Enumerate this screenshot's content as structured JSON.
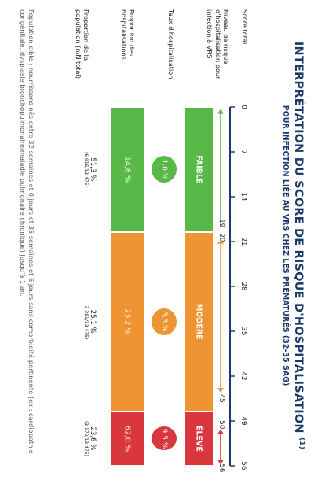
{
  "title": "INTERPRÉTATION DU SCORE DE RISQUE D'HOSPITALISATION",
  "title_note": "(1)",
  "subtitle": "POUR INFECTION LIÉE AU VRS CHEZ LES PRÉMATURÉS (32-35 SAG)",
  "rows": {
    "score_total": "Score total",
    "niveau": "Niveau de risque d'hospitalisation pour infection à VRS",
    "taux": "Taux d'hospitalisation",
    "prop_hosp": "Proportion des hospitalisations",
    "prop_pop": "Proportion de la population (n/N total)"
  },
  "scale": {
    "ticks": [
      "0",
      "7",
      "14",
      "21",
      "28",
      "35",
      "42",
      "49",
      "56"
    ],
    "min": 0,
    "max": 56
  },
  "boundaries": {
    "low_end": "19",
    "mod_start": "20",
    "mod_end": "45",
    "high_start": "50",
    "high_end": "56"
  },
  "levels": [
    {
      "key": "low",
      "label": "FAIBLE",
      "from": 0,
      "to": 19.5,
      "color": "#58b848",
      "taux": "1,0 %",
      "prop_hosp": "14,8 %",
      "prop_pop": "51,3 %",
      "prop_pop_n": "(6 915/13 475)"
    },
    {
      "key": "mod",
      "label": "MODÉRÉ",
      "from": 19.5,
      "to": 47.5,
      "color": "#ef9433",
      "taux": "3,3 %",
      "prop_hosp": "23,2 %",
      "prop_pop": "25,1 %",
      "prop_pop_n": "(3 381/13 475)"
    },
    {
      "key": "high",
      "label": "ÉLEVÉ",
      "from": 47.5,
      "to": 56,
      "color": "#d9373d",
      "taux": "9,5 %",
      "prop_hosp": "62,0 %",
      "prop_pop": "23,6 %",
      "prop_pop_n": "(3 179/13 475)"
    }
  ],
  "colors": {
    "navy": "#1b3a6b",
    "green": "#58b848",
    "orange": "#ef9433",
    "red": "#d9373d"
  },
  "footnote": "Population cible : nourrissons nés entre 32 semaines et 0 jours et 35 semaines et 6 jours sans comorbidité pertinente (ex : cardiopathie congénitale, dysplasie bronchopulmonaire/maladie pulmonaire chronique) jusqu'à 1 an."
}
